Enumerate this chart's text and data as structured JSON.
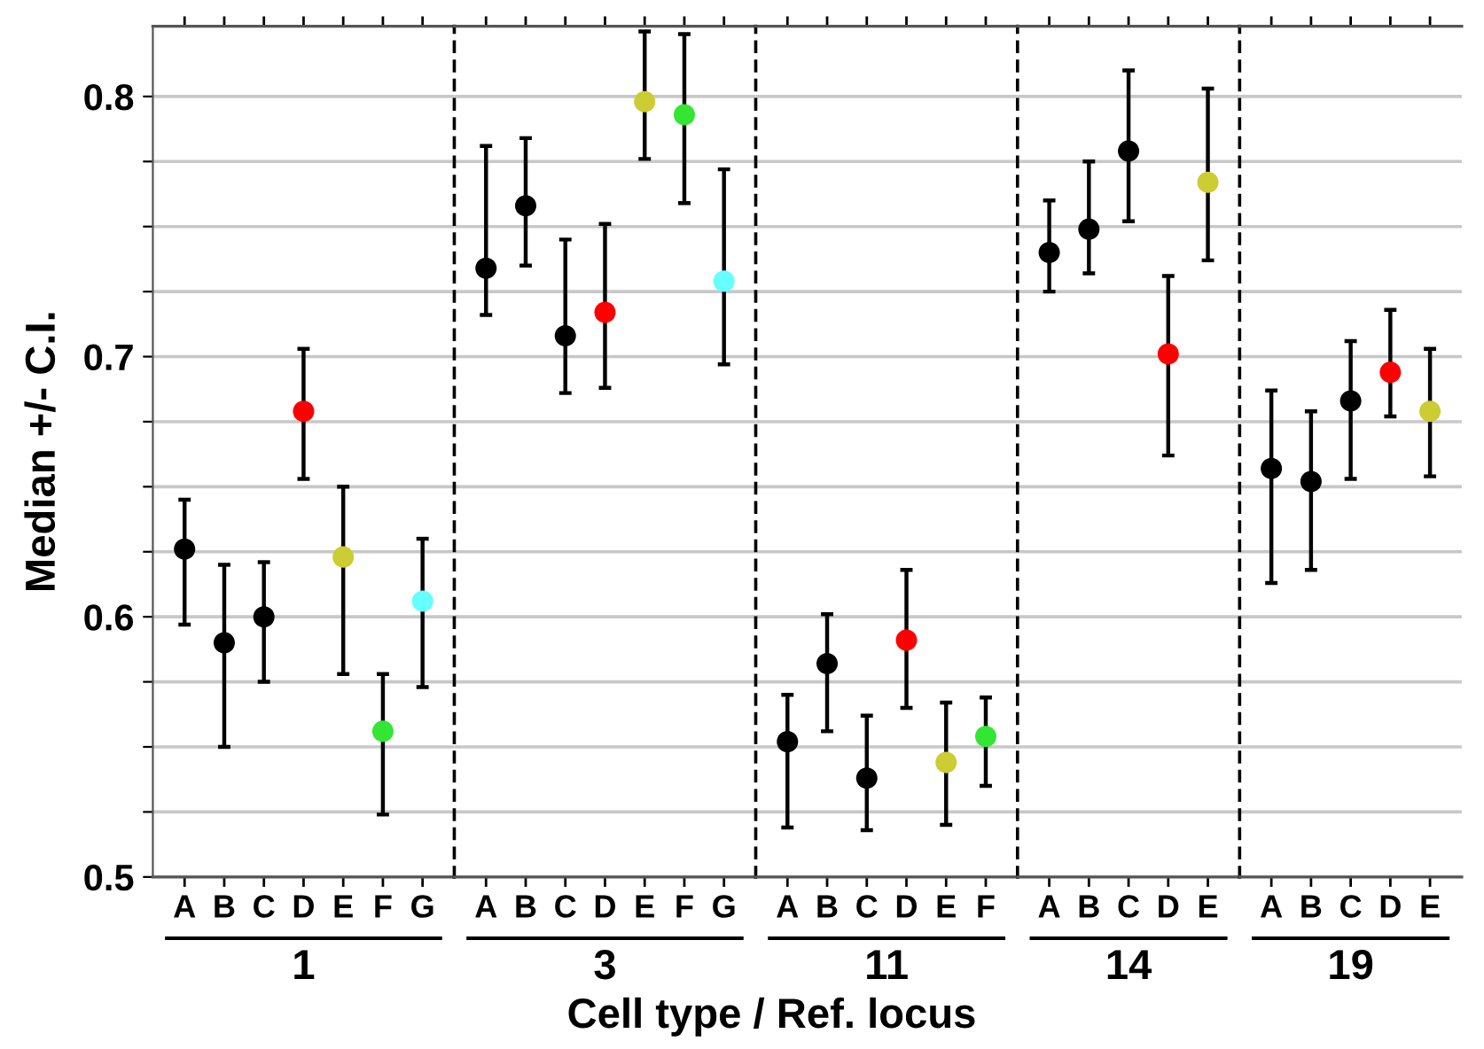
{
  "chart_data": [
    {
      "type": "scatter",
      "xlabel": "1",
      "ylabel": "Median +/- C.I.",
      "annotations": [
        "Cell type / Ref. locus"
      ],
      "categories": [
        "A",
        "B",
        "C",
        "D",
        "E",
        "F",
        "G"
      ],
      "values": [
        0.626,
        0.59,
        0.6,
        0.679,
        0.623,
        0.556,
        0.606
      ],
      "colors": [
        "#000000",
        "#000000",
        "#000000",
        "#ff0000",
        "#cccc33",
        "#33e633",
        "#66ffff"
      ],
      "errors": [
        [
          0.597,
          0.645
        ],
        [
          0.55,
          0.62
        ],
        [
          0.575,
          0.621
        ],
        [
          0.653,
          0.703
        ],
        [
          0.578,
          0.65
        ],
        [
          0.524,
          0.578
        ],
        [
          0.573,
          0.63
        ]
      ],
      "ylim": [
        0.5,
        0.827
      ],
      "yticks": [
        0.5,
        {
          "value": 0.525,
          "label": null
        },
        {
          "value": 0.55,
          "label": null
        },
        {
          "value": 0.575,
          "label": null
        },
        0.6,
        {
          "value": 0.625,
          "label": null
        },
        {
          "value": 0.65,
          "label": null
        },
        {
          "value": 0.675,
          "label": null
        },
        0.7,
        {
          "value": 0.725,
          "label": null
        },
        {
          "value": 0.75,
          "label": null
        },
        {
          "value": 0.775,
          "label": null
        },
        0.8
      ],
      "grid": "y",
      "marker": "circle"
    },
    {
      "type": "scatter",
      "xlabel": "3",
      "categories": [
        "A",
        "B",
        "C",
        "D",
        "E",
        "F",
        "G"
      ],
      "values": [
        0.734,
        0.758,
        0.708,
        0.717,
        0.798,
        0.793,
        0.729
      ],
      "colors": [
        "#000000",
        "#000000",
        "#000000",
        "#ff0000",
        "#cccc33",
        "#33e633",
        "#66ffff"
      ],
      "errors": [
        [
          0.716,
          0.781
        ],
        [
          0.735,
          0.784
        ],
        [
          0.686,
          0.745
        ],
        [
          0.688,
          0.751
        ],
        [
          0.776,
          0.825
        ],
        [
          0.759,
          0.824
        ],
        [
          0.697,
          0.772
        ]
      ],
      "ylim": [
        0.5,
        0.827
      ],
      "yticks": [
        0.5,
        {
          "value": 0.525,
          "label": null
        },
        {
          "value": 0.55,
          "label": null
        },
        {
          "value": 0.575,
          "label": null
        },
        0.6,
        {
          "value": 0.625,
          "label": null
        },
        {
          "value": 0.65,
          "label": null
        },
        {
          "value": 0.675,
          "label": null
        },
        0.7,
        {
          "value": 0.725,
          "label": null
        },
        {
          "value": 0.75,
          "label": null
        },
        {
          "value": 0.775,
          "label": null
        },
        0.8
      ],
      "grid": "y",
      "marker": "circle",
      "tick_labels": "x"
    },
    {
      "type": "scatter",
      "xlabel": "11",
      "categories": [
        "A",
        "B",
        "C",
        "D",
        "E",
        "F"
      ],
      "values": [
        0.552,
        0.582,
        0.538,
        0.591,
        0.544,
        0.554
      ],
      "colors": [
        "#000000",
        "#000000",
        "#000000",
        "#ff0000",
        "#cccc33",
        "#33e633"
      ],
      "errors": [
        [
          0.519,
          0.57
        ],
        [
          0.556,
          0.601
        ],
        [
          0.518,
          0.562
        ],
        [
          0.565,
          0.618
        ],
        [
          0.52,
          0.567
        ],
        [
          0.535,
          0.569
        ]
      ],
      "ylim": [
        0.5,
        0.827
      ],
      "yticks": [
        0.5,
        {
          "value": 0.525,
          "label": null
        },
        {
          "value": 0.55,
          "label": null
        },
        {
          "value": 0.575,
          "label": null
        },
        0.6,
        {
          "value": 0.625,
          "label": null
        },
        {
          "value": 0.65,
          "label": null
        },
        {
          "value": 0.675,
          "label": null
        },
        0.7,
        {
          "value": 0.725,
          "label": null
        },
        {
          "value": 0.75,
          "label": null
        },
        {
          "value": 0.775,
          "label": null
        },
        0.8
      ],
      "grid": "y",
      "marker": "circle",
      "tick_labels": "x"
    },
    {
      "type": "scatter",
      "xlabel": "14",
      "categories": [
        "A",
        "B",
        "C",
        "D",
        "E"
      ],
      "values": [
        0.74,
        0.749,
        0.779,
        0.701,
        0.767
      ],
      "colors": [
        "#000000",
        "#000000",
        "#000000",
        "#ff0000",
        "#cccc33"
      ],
      "errors": [
        [
          0.725,
          0.76
        ],
        [
          0.732,
          0.775
        ],
        [
          0.752,
          0.81
        ],
        [
          0.662,
          0.731
        ],
        [
          0.737,
          0.803
        ]
      ],
      "ylim": [
        0.5,
        0.827
      ],
      "yticks": [
        0.5,
        {
          "value": 0.525,
          "label": null
        },
        {
          "value": 0.55,
          "label": null
        },
        {
          "value": 0.575,
          "label": null
        },
        0.6,
        {
          "value": 0.625,
          "label": null
        },
        {
          "value": 0.65,
          "label": null
        },
        {
          "value": 0.675,
          "label": null
        },
        0.7,
        {
          "value": 0.725,
          "label": null
        },
        {
          "value": 0.75,
          "label": null
        },
        {
          "value": 0.775,
          "label": null
        },
        0.8
      ],
      "grid": "y",
      "marker": "circle",
      "tick_labels": "x"
    },
    {
      "type": "scatter",
      "xlabel": "19",
      "categories": [
        "A",
        "B",
        "C",
        "D",
        "E"
      ],
      "values": [
        0.657,
        0.652,
        0.683,
        0.694,
        0.679
      ],
      "colors": [
        "#000000",
        "#000000",
        "#000000",
        "#ff0000",
        "#cccc33"
      ],
      "errors": [
        [
          0.613,
          0.687
        ],
        [
          0.618,
          0.679
        ],
        [
          0.653,
          0.706
        ],
        [
          0.677,
          0.718
        ],
        [
          0.654,
          0.703
        ]
      ],
      "ylim": [
        0.5,
        0.827
      ],
      "yticks": [
        0.5,
        {
          "value": 0.525,
          "label": null
        },
        {
          "value": 0.55,
          "label": null
        },
        {
          "value": 0.575,
          "label": null
        },
        0.6,
        {
          "value": 0.625,
          "label": null
        },
        {
          "value": 0.65,
          "label": null
        },
        {
          "value": 0.675,
          "label": null
        },
        0.7,
        {
          "value": 0.725,
          "label": null
        },
        {
          "value": 0.75,
          "label": null
        },
        {
          "value": 0.775,
          "label": null
        },
        0.8
      ],
      "grid": "y",
      "marker": "circle",
      "tick_labels": "x"
    }
  ]
}
